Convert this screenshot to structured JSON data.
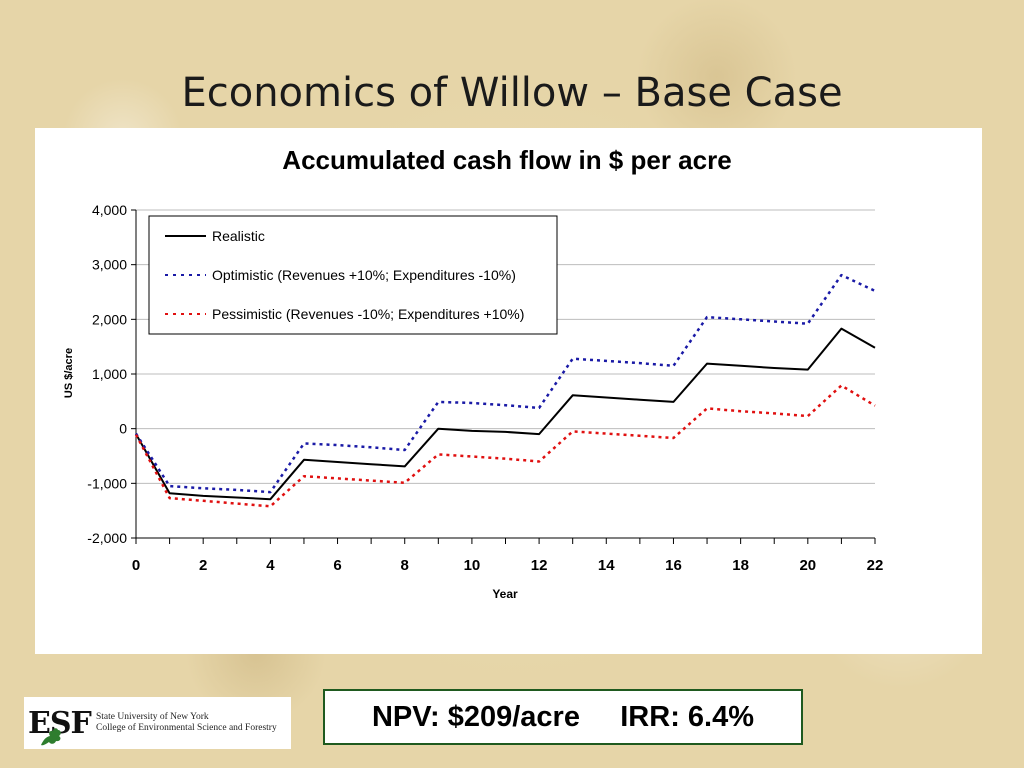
{
  "slide": {
    "title": "Economics of Willow – Base Case"
  },
  "chart_data": {
    "type": "line",
    "title": "Accumulated cash flow in $ per acre",
    "xlabel": "Year",
    "ylabel": "US $/acre",
    "xlim": [
      0,
      22
    ],
    "ylim": [
      -2000,
      4000
    ],
    "xticks": [
      0,
      2,
      4,
      6,
      8,
      10,
      12,
      14,
      16,
      18,
      20,
      22
    ],
    "yticks": [
      -2000,
      -1000,
      0,
      1000,
      2000,
      3000,
      4000
    ],
    "ytick_labels": [
      "-2,000",
      "-1,000",
      "0",
      "1,000",
      "2,000",
      "3,000",
      "4,000"
    ],
    "grid": "horizontal",
    "legend_position": "top-left",
    "x": [
      0,
      1,
      2,
      3,
      4,
      5,
      6,
      7,
      8,
      9,
      10,
      11,
      12,
      13,
      14,
      15,
      16,
      17,
      18,
      19,
      20,
      21,
      22
    ],
    "series": [
      {
        "name": "Realistic",
        "color": "#000000",
        "style": "solid",
        "values": [
          -100,
          -1180,
          -1230,
          -1260,
          -1290,
          -570,
          -610,
          -650,
          -690,
          0,
          -40,
          -60,
          -100,
          610,
          570,
          530,
          490,
          1190,
          1150,
          1110,
          1080,
          1830,
          1480
        ]
      },
      {
        "name": "Optimistic (Revenues +10%; Expenditures -10%)",
        "color": "#1a1aa6",
        "style": "dotted",
        "values": [
          -90,
          -1050,
          -1090,
          -1120,
          -1160,
          -270,
          -300,
          -340,
          -390,
          490,
          470,
          430,
          380,
          1280,
          1240,
          1200,
          1150,
          2040,
          2000,
          1960,
          1920,
          2810,
          2520
        ]
      },
      {
        "name": "Pessimistic (Revenues -10%; Expenditures +10%)",
        "color": "#e01010",
        "style": "dotted",
        "values": [
          -110,
          -1270,
          -1320,
          -1370,
          -1420,
          -870,
          -910,
          -950,
          -990,
          -470,
          -510,
          -550,
          -600,
          -50,
          -90,
          -130,
          -170,
          370,
          320,
          280,
          230,
          790,
          420
        ]
      }
    ]
  },
  "footer": {
    "logo_mark": "ESF",
    "logo_line1": "State University of New York",
    "logo_line2": "College of Environmental Science and Forestry",
    "npv": "NPV: $209/acre",
    "irr": "IRR: 6.4%"
  }
}
